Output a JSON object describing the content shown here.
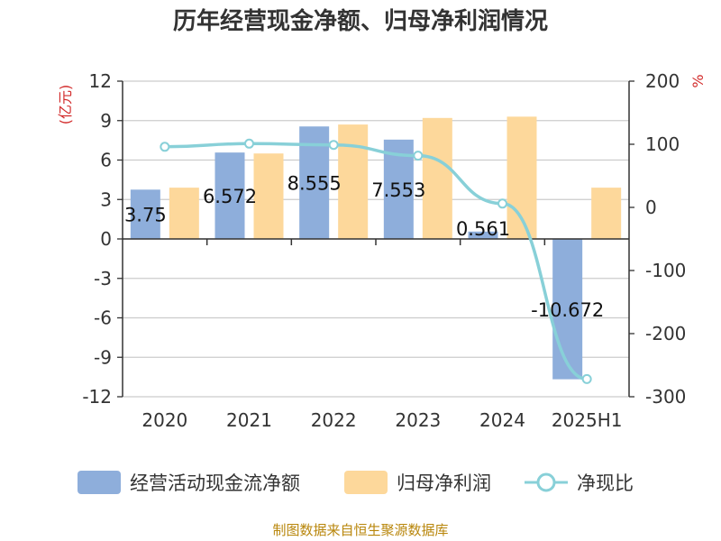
{
  "title": "历年经营现金净额、归母净利润情况",
  "footer": "制图数据来自恒生聚源数据库",
  "chart_data": {
    "type": "bar",
    "title": "历年经营现金净额、归母净利润情况",
    "categories": [
      "2020",
      "2021",
      "2022",
      "2023",
      "2024",
      "2025H1"
    ],
    "y_left": {
      "unit": "(亿元)",
      "range": [
        -12,
        12
      ],
      "ticks": [
        "12",
        "9",
        "6",
        "3",
        "0",
        "-3",
        "-6",
        "-9",
        "-12"
      ]
    },
    "y_right": {
      "unit": "%",
      "range": [
        -300,
        200
      ],
      "ticks": [
        "200",
        "100",
        "0",
        "-100",
        "-200",
        "-300"
      ]
    },
    "series": [
      {
        "name": "经营活动现金流净额",
        "type": "bar",
        "axis": "left",
        "color": "#8eaedb",
        "values": [
          3.75,
          6.572,
          8.555,
          7.553,
          0.561,
          -10.672
        ],
        "labels": [
          "3.75",
          "6.572",
          "8.555",
          "7.553",
          "0.561",
          "-10.672"
        ]
      },
      {
        "name": "归母净利润",
        "type": "bar",
        "axis": "left",
        "color": "#fdd89b",
        "values": [
          3.9,
          6.5,
          8.7,
          9.2,
          9.3,
          3.9
        ]
      },
      {
        "name": "净现比",
        "type": "line",
        "axis": "right",
        "color": "#88d0d8",
        "values": [
          96,
          101,
          99,
          82,
          6,
          -272
        ]
      }
    ],
    "grid": true,
    "legend": "bottom"
  }
}
